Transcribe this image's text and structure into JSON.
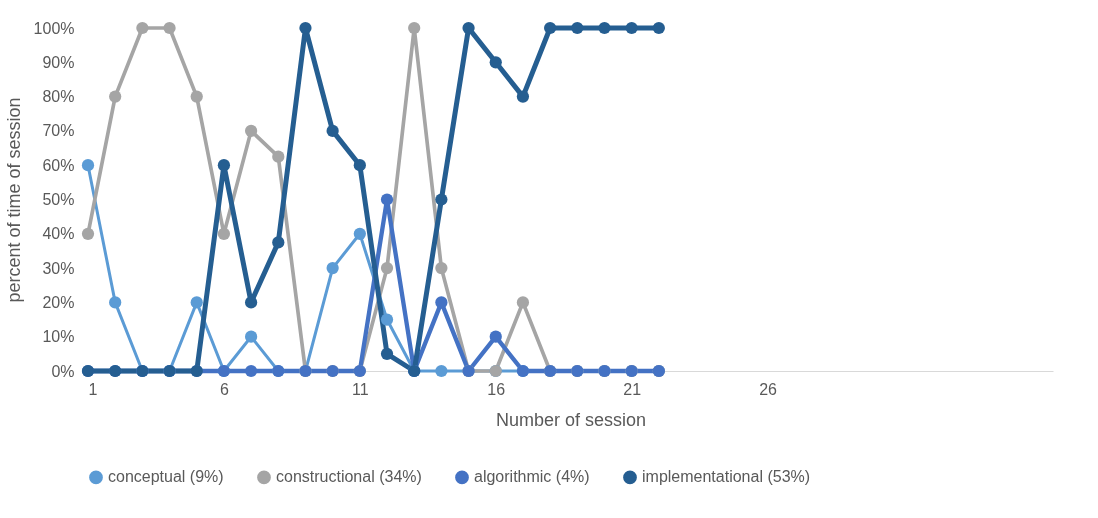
{
  "chart_data": {
    "type": "line",
    "xlabel": "Number of session",
    "ylabel": "percent of time of session",
    "x": [
      1,
      2,
      3,
      4,
      5,
      6,
      7,
      8,
      9,
      10,
      11,
      12,
      13,
      14,
      15,
      16,
      17,
      18,
      19,
      20,
      21,
      22
    ],
    "series": [
      {
        "name": "conceptual (9%)",
        "color": "#5b9bd5",
        "values": [
          60,
          20,
          0,
          0,
          20,
          0,
          10,
          0,
          0,
          30,
          40,
          15,
          0,
          0,
          0,
          0,
          0,
          0,
          0,
          0,
          0,
          0
        ]
      },
      {
        "name": "constructional (34%)",
        "color": "#a5a5a5",
        "values": [
          40,
          80,
          100,
          100,
          80,
          40,
          70,
          62.5,
          0,
          0,
          0,
          30,
          100,
          30,
          0,
          0,
          20,
          0,
          0,
          0,
          0,
          0
        ]
      },
      {
        "name": "algorithmic (4%)",
        "color": "#4472c4",
        "values": [
          0,
          0,
          0,
          0,
          0,
          0,
          0,
          0,
          0,
          0,
          0,
          50,
          0,
          20,
          0,
          10,
          0,
          0,
          0,
          0,
          0,
          0
        ]
      },
      {
        "name": "implementational (53%)",
        "color": "#255e91",
        "values": [
          0,
          0,
          0,
          0,
          0,
          60,
          20,
          37.5,
          100,
          70,
          60,
          5,
          0,
          50,
          100,
          90,
          80,
          100,
          100,
          100,
          100,
          100
        ]
      }
    ],
    "xlim": [
      1,
      36.5
    ],
    "xticks": [
      1,
      6,
      11,
      16,
      21,
      26
    ],
    "ylim": [
      0,
      100
    ],
    "yticks": [
      {
        "value": 0,
        "label": "0%"
      },
      {
        "value": 10,
        "label": "10%"
      },
      {
        "value": 20,
        "label": "20%"
      },
      {
        "value": 30,
        "label": "30%"
      },
      {
        "value": 40,
        "label": "40%"
      },
      {
        "value": 50,
        "label": "50%"
      },
      {
        "value": 60,
        "label": "60%"
      },
      {
        "value": 70,
        "label": "70%"
      },
      {
        "value": 80,
        "label": "80%"
      },
      {
        "value": 90,
        "label": "90%"
      },
      {
        "value": 100,
        "label": "100%"
      }
    ],
    "grid": false,
    "legend": "bottom",
    "marker": "circle",
    "line_style": "solid"
  }
}
